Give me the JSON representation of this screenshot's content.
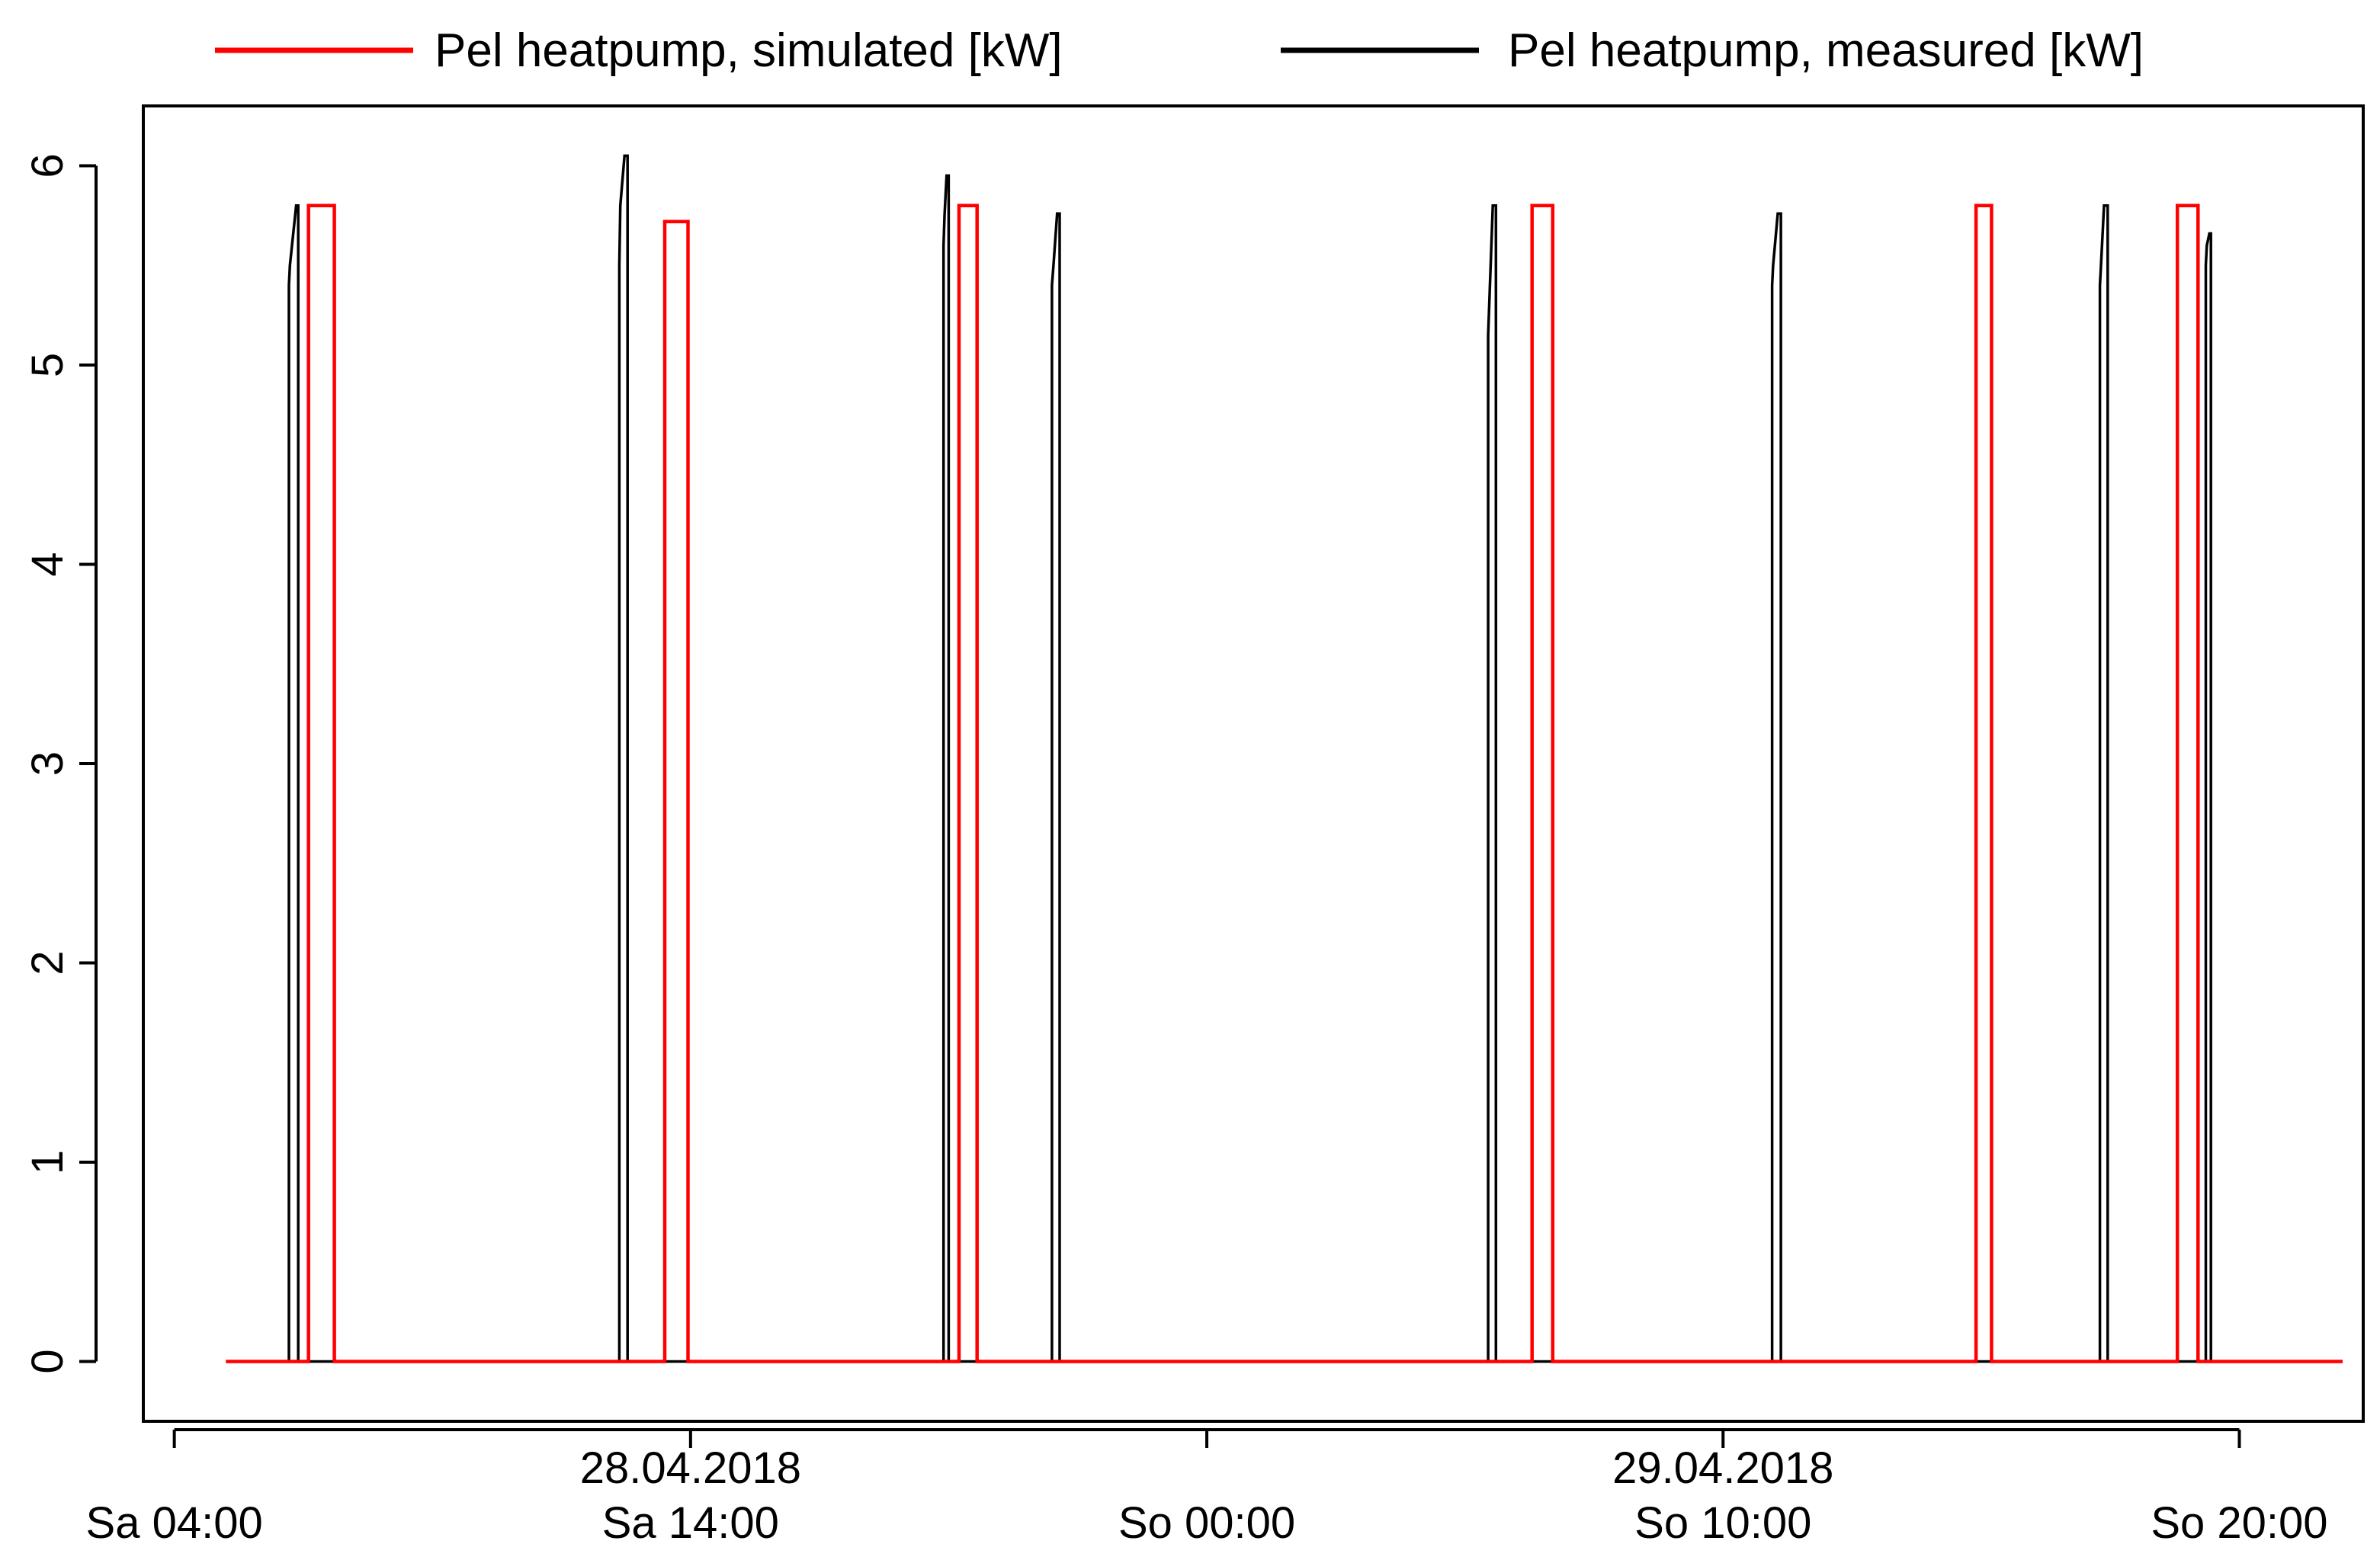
{
  "chart_data": {
    "type": "line",
    "title": "",
    "xlabel": "",
    "ylabel": "",
    "x_unit": "hours",
    "x_range_hours": [
      -0.6,
      42.4
    ],
    "ylim": [
      -0.3,
      6.3
    ],
    "y_ticks": [
      0,
      1,
      2,
      3,
      4,
      5,
      6
    ],
    "x_ticks": [
      {
        "hour": 0,
        "label": "Sa 04:00"
      },
      {
        "hour": 10,
        "label": "Sa 14:00"
      },
      {
        "hour": 20,
        "label": "So 00:00"
      },
      {
        "hour": 30,
        "label": "So 10:00"
      },
      {
        "hour": 40,
        "label": "So 20:00"
      }
    ],
    "date_labels": [
      {
        "hour": 10,
        "label": "28.04.2018"
      },
      {
        "hour": 30,
        "label": "29.04.2018"
      }
    ],
    "grid": false,
    "legend_position": "top, outside plot",
    "legend": [
      {
        "label": "Pel heatpump, simulated [kW]",
        "color": "#ff0000"
      },
      {
        "label": "Pel heatpump, measured [kW]",
        "color": "#000000"
      }
    ],
    "series": [
      {
        "name": "Pel heatpump, simulated [kW]",
        "color": "#ff0000",
        "x": [
          1.0,
          2.6,
          2.6,
          3.1,
          3.1,
          9.5,
          9.5,
          9.95,
          9.95,
          15.2,
          15.2,
          15.55,
          15.55,
          26.3,
          26.3,
          26.7,
          26.7,
          34.9,
          34.9,
          35.2,
          35.2,
          38.8,
          38.8,
          39.2,
          39.2,
          42.0
        ],
        "y": [
          0,
          0,
          5.8,
          5.8,
          0,
          0,
          5.72,
          5.72,
          0,
          0,
          5.8,
          5.8,
          0,
          0,
          5.8,
          5.8,
          0,
          0,
          5.8,
          5.8,
          0,
          0,
          5.8,
          5.8,
          0,
          0
        ]
      },
      {
        "name": "Pel heatpump, measured [kW]",
        "color": "#000000",
        "x": [
          1.0,
          2.22,
          2.22,
          2.24,
          2.36,
          2.4,
          2.4,
          8.62,
          8.62,
          8.64,
          8.72,
          8.78,
          8.78,
          14.9,
          14.9,
          14.92,
          14.96,
          15.0,
          15.0,
          17.0,
          17.0,
          17.03,
          17.1,
          17.15,
          17.15,
          25.45,
          25.45,
          25.47,
          25.54,
          25.6,
          25.6,
          30.95,
          30.95,
          30.97,
          31.06,
          31.12,
          31.12,
          37.3,
          37.3,
          37.32,
          37.38,
          37.45,
          37.45,
          39.35,
          39.35,
          39.37,
          39.42,
          39.45,
          39.45,
          42.0
        ],
        "y": [
          0,
          0,
          5.4,
          5.5,
          5.8,
          5.8,
          0,
          0,
          5.5,
          5.8,
          6.05,
          6.05,
          0,
          0,
          5.6,
          5.75,
          5.95,
          5.95,
          0,
          0,
          5.4,
          5.5,
          5.76,
          5.76,
          0,
          0,
          5.15,
          5.3,
          5.8,
          5.8,
          0,
          0,
          5.4,
          5.5,
          5.76,
          5.76,
          0,
          0,
          5.4,
          5.5,
          5.8,
          5.8,
          0,
          0,
          5.5,
          5.6,
          5.66,
          5.66,
          0,
          0
        ]
      }
    ]
  }
}
